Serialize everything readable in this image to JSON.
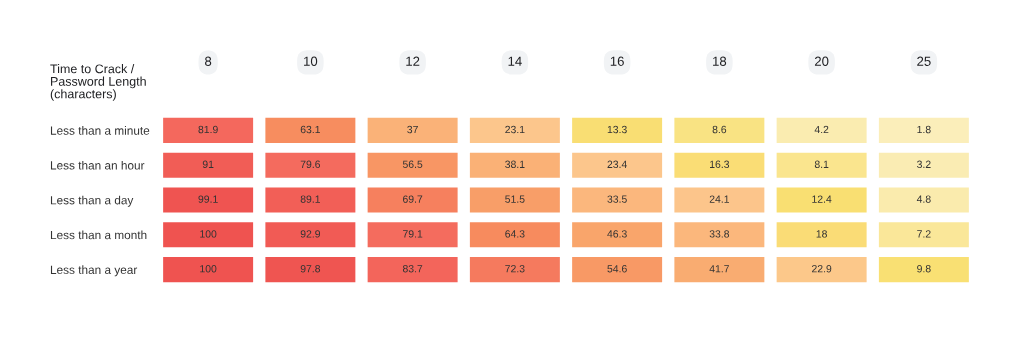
{
  "chart_data": {
    "type": "heatmap",
    "xlabel": "Time to Crack /\nPassword Length\n(characters)",
    "categories": [
      "8",
      "10",
      "12",
      "14",
      "16",
      "18",
      "20",
      "25"
    ],
    "y_categories": [
      "Less than a minute",
      "Less than an hour",
      "Less than a day",
      "Less than a month",
      "Less than a year"
    ],
    "cells": [
      [
        81.9,
        63.1,
        37,
        23.1,
        13.3,
        8.6,
        4.2,
        1.8
      ],
      [
        91,
        79.6,
        56.5,
        38.1,
        23.4,
        16.3,
        8.1,
        3.2
      ],
      [
        99.1,
        89.1,
        69.7,
        51.5,
        33.5,
        24.1,
        12.4,
        4.8
      ],
      [
        100,
        92.9,
        79.1,
        64.3,
        46.3,
        33.8,
        18,
        7.2
      ],
      [
        100,
        97.8,
        83.7,
        72.3,
        54.6,
        41.7,
        22.9,
        9.8
      ]
    ],
    "data_labels": true
  }
}
